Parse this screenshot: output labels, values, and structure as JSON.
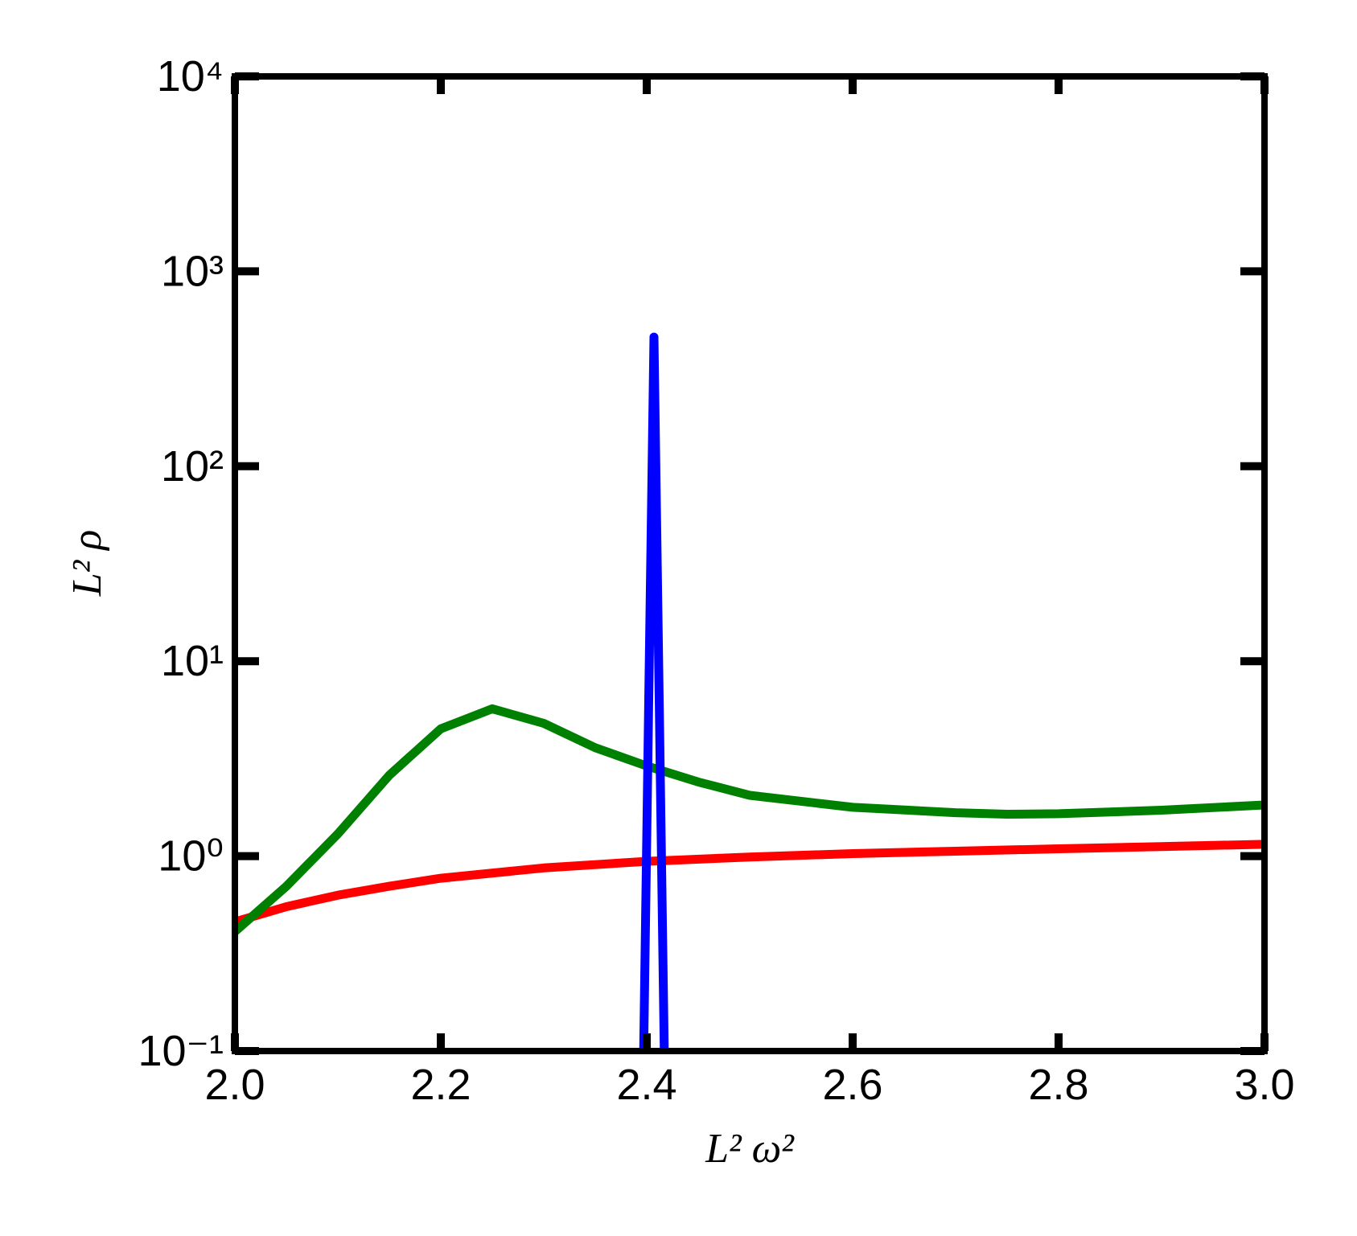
{
  "chart_data": {
    "type": "line",
    "x_label": "L² ω²",
    "y_label": "L² ρ",
    "log_y": true,
    "xlim": [
      2.0,
      3.0
    ],
    "ylim": [
      0.1,
      10000
    ],
    "xticks": [
      {
        "value": 2.0,
        "label": "2.0"
      },
      2.2,
      2.4,
      2.6,
      2.8,
      {
        "value": 3.0,
        "label": "3.0"
      }
    ],
    "yticks": [
      {
        "value": 0.1,
        "label": "10⁻¹"
      },
      {
        "value": 1,
        "label": "10⁰"
      },
      {
        "value": 10,
        "label": "10¹"
      },
      {
        "value": 100,
        "label": "10²"
      },
      {
        "value": 1000,
        "label": "10³"
      },
      {
        "value": 10000,
        "label": "10⁴"
      }
    ],
    "series": [
      {
        "color": "#ff0000",
        "x": [
          2.0,
          2.05,
          2.1,
          2.15,
          2.2,
          2.3,
          2.4,
          2.5,
          2.6,
          2.7,
          2.8,
          2.9,
          3.0
        ],
        "values": [
          0.46,
          0.55,
          0.63,
          0.7,
          0.77,
          0.87,
          0.94,
          0.99,
          1.03,
          1.06,
          1.09,
          1.12,
          1.15
        ]
      },
      {
        "color": "#008000",
        "x": [
          2.0,
          2.05,
          2.1,
          2.15,
          2.2,
          2.25,
          2.3,
          2.35,
          2.4,
          2.45,
          2.5,
          2.6,
          2.7,
          2.75,
          2.8,
          2.9,
          3.0
        ],
        "values": [
          0.41,
          0.7,
          1.3,
          2.6,
          4.5,
          5.7,
          4.8,
          3.6,
          2.9,
          2.4,
          2.05,
          1.78,
          1.67,
          1.64,
          1.65,
          1.72,
          1.83
        ]
      },
      {
        "color": "#0000ff",
        "x": [
          2.397,
          2.407,
          2.417
        ],
        "values": [
          0.1,
          460,
          0.1
        ]
      }
    ]
  }
}
